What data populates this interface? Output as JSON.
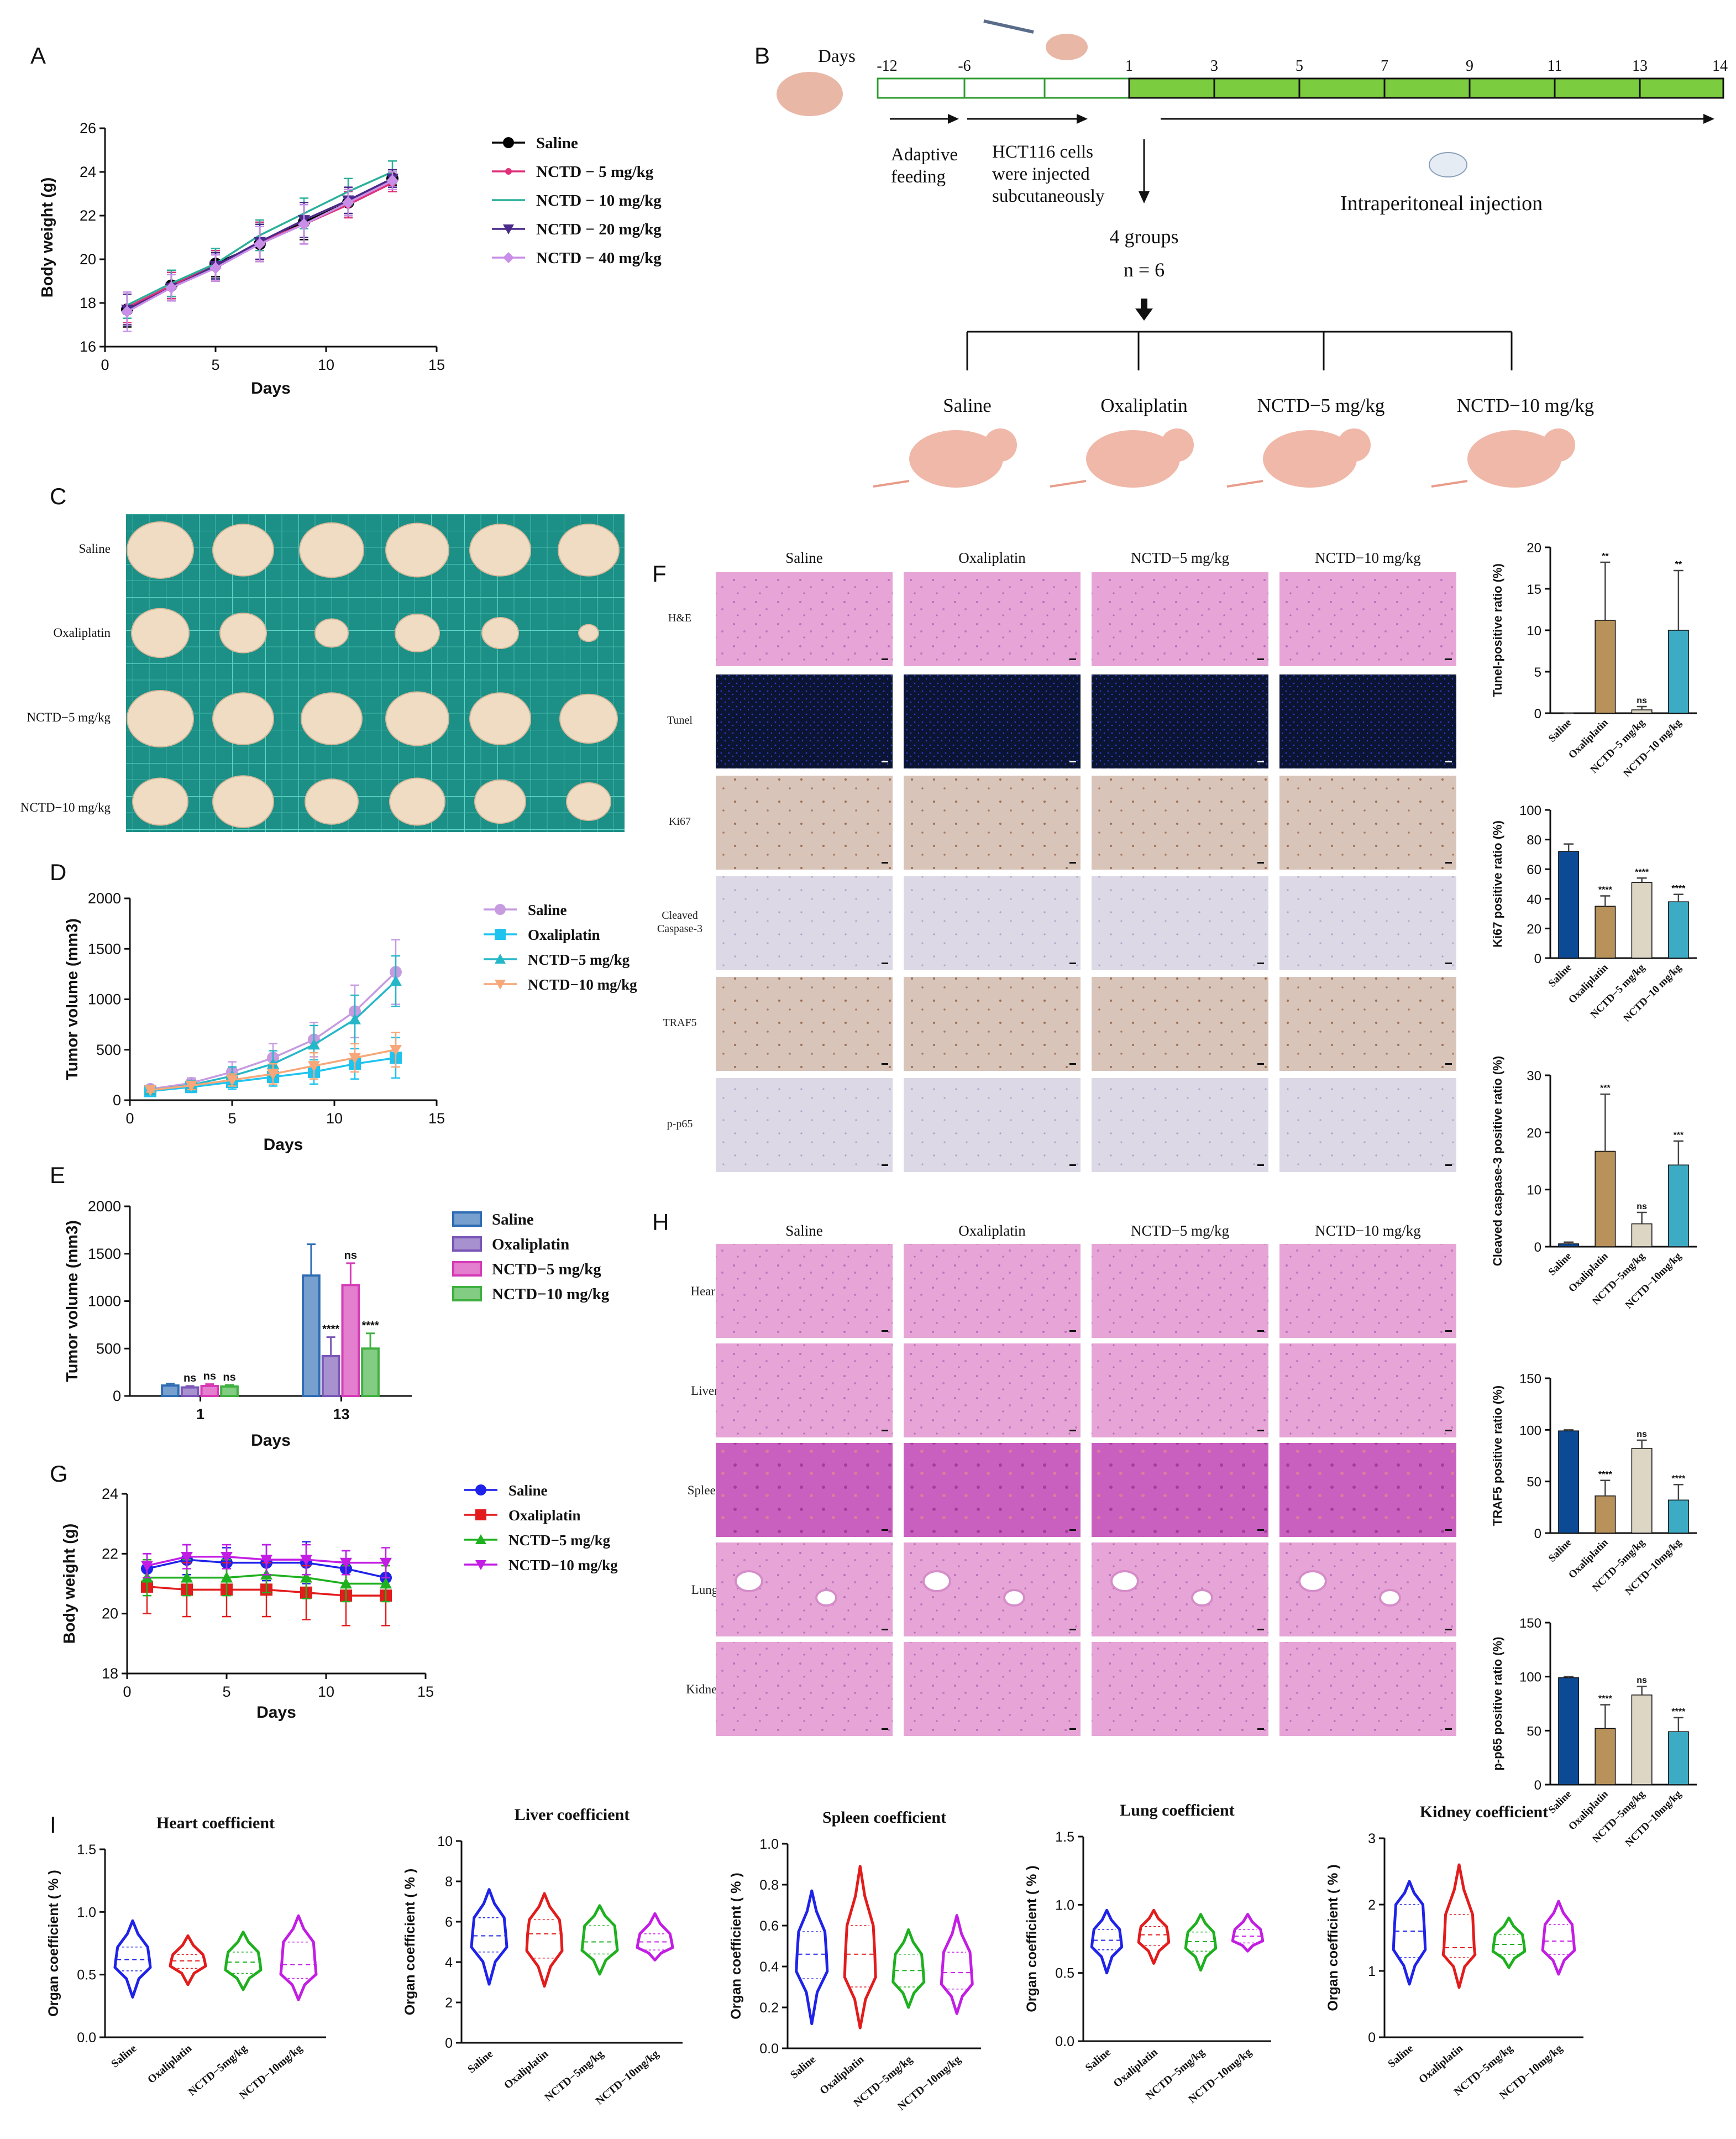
{
  "figure": {
    "panel_letters": [
      "A",
      "B",
      "C",
      "D",
      "E",
      "F",
      "G",
      "H",
      "I"
    ],
    "colors": {
      "saline_blue": "#2f6db3",
      "purple": "#7a56b6",
      "magenta": "#d63bb6",
      "green": "#40b040",
      "lilac": "#c69be0",
      "cyan": "#1fc3ee",
      "teal_tri": "#25b7c8",
      "orange": "#f7a779",
      "dark_blue": "#0d4a96",
      "tan": "#b8925a",
      "beige": "#ddd6c4",
      "teal": "#3eabc4",
      "red": "#e21c1c",
      "blue": "#1f22e8",
      "violet": "#c31de4",
      "he_pink": "#e8a6d6",
      "ihc": "#dad6e4",
      "tunel": "#0b1432",
      "grid_green": "#1c8f86"
    }
  },
  "schematic": {
    "days_label": "Days",
    "timeline_ticks": [
      "-12",
      "-6",
      "1",
      "3",
      "5",
      "7",
      "9",
      "11",
      "13",
      "14"
    ],
    "adaptive_label": [
      "Adaptive",
      "feeding"
    ],
    "hct_label": [
      "HCT116 cells",
      "were injected",
      "subcutaneously"
    ],
    "injection_label": "Intraperitoneal injection",
    "groups_label": "4 groups",
    "n_label": "n = 6",
    "groups": [
      "Saline",
      "Oxaliplatin",
      "NCTD−5 mg/kg",
      "NCTD−10 mg/kg"
    ]
  },
  "photo": {
    "row_labels": [
      "Saline",
      "Oxaliplatin",
      "NCTD−5 mg/kg",
      "NCTD−10 mg/kg"
    ]
  },
  "histology_F": {
    "col_labels": [
      "Saline",
      "Oxaliplatin",
      "NCTD−5 mg/kg",
      "NCTD−10 mg/kg"
    ],
    "row_labels": [
      "H&E",
      "Tunel",
      "Ki67",
      "Cleaved\nCaspase-3",
      "TRAF5",
      "p-p65"
    ]
  },
  "histology_H": {
    "col_labels": [
      "Saline",
      "Oxaliplatin",
      "NCTD−5 mg/kg",
      "NCTD−10 mg/kg"
    ],
    "row_labels": [
      "Heart",
      "Liver",
      "Spleen",
      "Lung",
      "Kidney"
    ]
  },
  "chart_data": [
    {
      "id": "A",
      "type": "line",
      "xlabel": "Days",
      "ylabel": "Body weight (g)",
      "xlim": [
        0,
        15
      ],
      "ylim": [
        16,
        26
      ],
      "xticks": [
        0,
        5,
        10,
        15
      ],
      "yticks": [
        16,
        18,
        20,
        22,
        24,
        26
      ],
      "x": [
        1,
        3,
        5,
        7,
        9,
        11,
        13
      ],
      "series": [
        {
          "name": "Saline",
          "color": "#000000",
          "marker": "circle",
          "values": [
            17.7,
            18.8,
            19.8,
            20.7,
            21.7,
            22.6,
            23.7
          ],
          "err": [
            0.8,
            0.6,
            0.6,
            0.8,
            0.8,
            0.6,
            0.3
          ]
        },
        {
          "name": "NCTD − 5 mg/kg",
          "color": "#e0307a",
          "marker": "dot",
          "values": [
            17.8,
            18.8,
            19.7,
            20.8,
            21.6,
            22.5,
            23.5
          ],
          "err": [
            0.7,
            0.6,
            0.7,
            0.9,
            0.9,
            0.6,
            0.4
          ]
        },
        {
          "name": "NCTD − 10 mg/kg",
          "color": "#2bb09a",
          "marker": "none",
          "values": [
            17.9,
            18.9,
            19.8,
            21.1,
            22.1,
            23.1,
            24.0
          ],
          "err": [
            0.6,
            0.6,
            0.7,
            0.7,
            0.7,
            0.6,
            0.5
          ]
        },
        {
          "name": "NCTD − 20 mg/kg",
          "color": "#4a2a8a",
          "marker": "tri_down",
          "values": [
            17.7,
            18.7,
            19.7,
            20.8,
            21.8,
            22.7,
            23.7
          ],
          "err": [
            0.7,
            0.6,
            0.6,
            0.8,
            0.8,
            0.6,
            0.4
          ]
        },
        {
          "name": "NCTD − 40 mg/kg",
          "color": "#c88ee8",
          "marker": "diamond",
          "values": [
            17.6,
            18.7,
            19.6,
            20.7,
            21.6,
            22.6,
            23.6
          ],
          "err": [
            0.9,
            0.6,
            0.6,
            0.8,
            0.9,
            0.6,
            0.4
          ]
        }
      ]
    },
    {
      "id": "D",
      "type": "line",
      "xlabel": "Days",
      "ylabel": "Tumor volume (mm3)",
      "xlim": [
        0,
        15
      ],
      "ylim": [
        0,
        2000
      ],
      "xticks": [
        0,
        5,
        10,
        15
      ],
      "yticks": [
        0,
        500,
        1000,
        1500,
        2000
      ],
      "x": [
        1,
        3,
        5,
        7,
        9,
        11,
        13
      ],
      "series": [
        {
          "name": "Saline",
          "color": "#c69be0",
          "marker": "circle",
          "values": [
            110,
            170,
            280,
            420,
            600,
            880,
            1270
          ],
          "err": [
            20,
            50,
            100,
            140,
            170,
            260,
            320
          ]
        },
        {
          "name": "Oxaliplatin",
          "color": "#1fc3ee",
          "marker": "square",
          "values": [
            90,
            130,
            180,
            230,
            280,
            360,
            420
          ],
          "err": [
            20,
            40,
            70,
            90,
            120,
            150,
            200
          ]
        },
        {
          "name": "NCTD−5 mg/kg",
          "color": "#25b7c8",
          "marker": "tri_up",
          "values": [
            100,
            150,
            240,
            360,
            550,
            800,
            1180
          ],
          "err": [
            20,
            40,
            90,
            130,
            190,
            240,
            250
          ]
        },
        {
          "name": "NCTD−10 mg/kg",
          "color": "#f7a779",
          "marker": "tri_down",
          "values": [
            100,
            145,
            200,
            260,
            340,
            420,
            500
          ],
          "err": [
            20,
            40,
            60,
            100,
            130,
            140,
            170
          ]
        }
      ]
    },
    {
      "id": "E",
      "type": "bar",
      "xlabel": "Days",
      "ylabel": "Tumor volume (mm3)",
      "categories": [
        "1",
        "13"
      ],
      "ylim": [
        0,
        2000
      ],
      "yticks": [
        0,
        500,
        1000,
        1500,
        2000
      ],
      "series": [
        {
          "name": "Saline",
          "color": "#2f6db3",
          "values": [
            110,
            1270
          ],
          "err": [
            20,
            330
          ],
          "sig": [
            "",
            ""
          ]
        },
        {
          "name": "Oxaliplatin",
          "color": "#7a56b6",
          "values": [
            90,
            420
          ],
          "err": [
            15,
            200
          ],
          "sig": [
            "ns",
            "****"
          ]
        },
        {
          "name": "NCTD−5 mg/kg",
          "color": "#d63bb6",
          "values": [
            105,
            1170
          ],
          "err": [
            20,
            230
          ],
          "sig": [
            "ns",
            "ns"
          ]
        },
        {
          "name": "NCTD−10 mg/kg",
          "color": "#40b040",
          "values": [
            100,
            500
          ],
          "err": [
            15,
            160
          ],
          "sig": [
            "ns",
            "****"
          ]
        }
      ]
    },
    {
      "id": "G",
      "type": "line",
      "xlabel": "Days",
      "ylabel": "Body weight (g)",
      "xlim": [
        0,
        15
      ],
      "ylim": [
        18,
        24
      ],
      "xticks": [
        0,
        5,
        10,
        15
      ],
      "yticks": [
        18,
        20,
        22,
        24
      ],
      "x": [
        1,
        3,
        5,
        7,
        9,
        11,
        13
      ],
      "series": [
        {
          "name": "Saline",
          "color": "#1f22e8",
          "marker": "circle",
          "values": [
            21.5,
            21.8,
            21.7,
            21.7,
            21.7,
            21.5,
            21.2
          ],
          "err": [
            0.5,
            0.5,
            0.5,
            0.6,
            0.7,
            0.6,
            0.6
          ]
        },
        {
          "name": "Oxaliplatin",
          "color": "#e21c1c",
          "marker": "square",
          "values": [
            20.9,
            20.8,
            20.8,
            20.8,
            20.7,
            20.6,
            20.6
          ],
          "err": [
            0.9,
            0.9,
            0.9,
            0.9,
            0.9,
            1.0,
            1.0
          ]
        },
        {
          "name": "NCTD−5 mg/kg",
          "color": "#1fb01f",
          "marker": "tri_up",
          "values": [
            21.2,
            21.2,
            21.2,
            21.3,
            21.2,
            21.0,
            21.0
          ],
          "err": [
            0.6,
            0.6,
            0.6,
            0.6,
            0.7,
            0.6,
            0.6
          ]
        },
        {
          "name": "NCTD−10 mg/kg",
          "color": "#c31de4",
          "marker": "tri_down",
          "values": [
            21.6,
            21.9,
            21.9,
            21.8,
            21.8,
            21.7,
            21.7
          ],
          "err": [
            0.4,
            0.4,
            0.4,
            0.5,
            0.5,
            0.4,
            0.5
          ]
        }
      ]
    },
    {
      "id": "F1",
      "type": "bar",
      "ylabel": "Tunel-positive ratio (%)",
      "categories": [
        "Saline",
        "Oxaliplatin",
        "NCTD−5 mg/kg",
        "NCTD−10 mg/kg"
      ],
      "ylim": [
        0,
        20
      ],
      "yticks": [
        0,
        5,
        10,
        15,
        20
      ],
      "values": [
        0,
        11.2,
        0.4,
        10.0
      ],
      "err": [
        0,
        7,
        0.4,
        7.2
      ],
      "sig": [
        "",
        "**",
        "ns",
        "**"
      ],
      "colors": [
        "#0d4a96",
        "#b8925a",
        "#ddd6c4",
        "#3eabc4"
      ]
    },
    {
      "id": "F2",
      "type": "bar",
      "ylabel": "Ki67 positive ratio (%)",
      "categories": [
        "Saline",
        "Oxaliplatin",
        "NCTD−5 mg/kg",
        "NCTD−10 mg/kg"
      ],
      "ylim": [
        0,
        100
      ],
      "yticks": [
        0,
        20,
        40,
        60,
        80,
        100
      ],
      "values": [
        72,
        35,
        51,
        38
      ],
      "err": [
        5,
        7,
        3,
        5
      ],
      "sig": [
        "",
        "****",
        "****",
        "****"
      ],
      "colors": [
        "#0d4a96",
        "#b8925a",
        "#ddd6c4",
        "#3eabc4"
      ]
    },
    {
      "id": "F3",
      "type": "bar",
      "ylabel": "Cleaved caspase-3 positive ratio (%)",
      "categories": [
        "Saline",
        "Oxaliplatin",
        "NCTD−5mg/kg",
        "NCTD−10mg/kg"
      ],
      "ylim": [
        0,
        30
      ],
      "yticks": [
        0,
        10,
        20,
        30
      ],
      "values": [
        0.5,
        16.7,
        4,
        14.3
      ],
      "err": [
        0.3,
        10,
        2,
        4.2
      ],
      "sig": [
        "",
        "***",
        "ns",
        "***"
      ],
      "colors": [
        "#0d4a96",
        "#b8925a",
        "#ddd6c4",
        "#3eabc4"
      ]
    },
    {
      "id": "F4",
      "type": "bar",
      "ylabel": "TRAF5 positive ratio (%)",
      "categories": [
        "Saline",
        "Oxaliplatin",
        "NCTD−5mg/kg",
        "NCTD−10mg/kg"
      ],
      "ylim": [
        0,
        150
      ],
      "yticks": [
        0,
        50,
        100,
        150
      ],
      "values": [
        99,
        36,
        82,
        32
      ],
      "err": [
        1,
        15,
        8,
        15
      ],
      "sig": [
        "",
        "****",
        "ns",
        "****"
      ],
      "colors": [
        "#0d4a96",
        "#b8925a",
        "#ddd6c4",
        "#3eabc4"
      ]
    },
    {
      "id": "F5",
      "type": "bar",
      "ylabel": "p-p65 positive ratio (%)",
      "categories": [
        "Saline",
        "Oxaliplatin",
        "NCTD−5mg/kg",
        "NCTD−10mg/kg"
      ],
      "ylim": [
        0,
        150
      ],
      "yticks": [
        0,
        50,
        100,
        150
      ],
      "values": [
        99,
        52,
        83,
        49
      ],
      "err": [
        1,
        22,
        8,
        13
      ],
      "sig": [
        "",
        "****",
        "ns",
        "****"
      ],
      "colors": [
        "#0d4a96",
        "#b8925a",
        "#ddd6c4",
        "#3eabc4"
      ]
    },
    {
      "id": "I1",
      "type": "violin",
      "title": "Heart coefficient",
      "ylabel": "Organ coefficient ( % )",
      "categories": [
        "Saline",
        "Oxaliplatin",
        "NCTD−5mg/kg",
        "NCTD−10mg/kg"
      ],
      "ylim": [
        0,
        1.5
      ],
      "yticks": [
        0,
        0.5,
        1.0,
        1.5
      ],
      "groups": [
        [
          0.32,
          0.53,
          0.62,
          0.72,
          0.93
        ],
        [
          0.42,
          0.55,
          0.61,
          0.66,
          0.81
        ],
        [
          0.38,
          0.51,
          0.6,
          0.68,
          0.84
        ],
        [
          0.3,
          0.47,
          0.58,
          0.76,
          0.97
        ]
      ],
      "colors": [
        "#1f22e8",
        "#e21c1c",
        "#1fb01f",
        "#c31de4"
      ]
    },
    {
      "id": "I2",
      "type": "violin",
      "title": "Liver coefficient",
      "ylabel": "Organ coefficient ( % )",
      "categories": [
        "Saline",
        "Oxaliplatin",
        "NCTD−5mg/kg",
        "NCTD−10mg/kg"
      ],
      "ylim": [
        0,
        10
      ],
      "yticks": [
        0,
        2,
        4,
        6,
        8,
        10
      ],
      "groups": [
        [
          2.9,
          4.5,
          5.3,
          6.2,
          7.6
        ],
        [
          2.8,
          4.2,
          5.4,
          6.1,
          7.4
        ],
        [
          3.4,
          4.4,
          5.0,
          5.8,
          6.8
        ],
        [
          4.1,
          4.6,
          5.0,
          5.4,
          6.4
        ]
      ],
      "colors": [
        "#1f22e8",
        "#e21c1c",
        "#1fb01f",
        "#c31de4"
      ]
    },
    {
      "id": "I3",
      "type": "violin",
      "title": "Spleen coefficient",
      "ylabel": "Organ coefficient ( % )",
      "categories": [
        "Saline",
        "Oxaliplatin",
        "NCTD−5mg/kg",
        "NCTD−10mg/kg"
      ],
      "ylim": [
        0,
        1.0
      ],
      "yticks": [
        0,
        0.2,
        0.4,
        0.6,
        0.8,
        1.0
      ],
      "groups": [
        [
          0.12,
          0.34,
          0.46,
          0.57,
          0.77
        ],
        [
          0.1,
          0.3,
          0.46,
          0.6,
          0.89
        ],
        [
          0.2,
          0.3,
          0.38,
          0.46,
          0.58
        ],
        [
          0.17,
          0.29,
          0.37,
          0.47,
          0.65
        ]
      ],
      "colors": [
        "#1f22e8",
        "#e21c1c",
        "#1fb01f",
        "#c31de4"
      ]
    },
    {
      "id": "I4",
      "type": "violin",
      "title": "Lung coefficient",
      "ylabel": "Organ coefficient ( % )",
      "categories": [
        "Saline",
        "Oxaliplatin",
        "NCTD−5mg/kg",
        "NCTD−10mg/kg"
      ],
      "ylim": [
        0,
        1.5
      ],
      "yticks": [
        0.0,
        0.5,
        1.0,
        1.5
      ],
      "groups": [
        [
          0.5,
          0.67,
          0.74,
          0.82,
          0.96
        ],
        [
          0.57,
          0.7,
          0.78,
          0.84,
          0.96
        ],
        [
          0.52,
          0.66,
          0.73,
          0.8,
          0.93
        ],
        [
          0.66,
          0.72,
          0.77,
          0.82,
          0.93
        ]
      ],
      "colors": [
        "#1f22e8",
        "#e21c1c",
        "#1fb01f",
        "#c31de4"
      ]
    },
    {
      "id": "I5",
      "type": "violin",
      "title": "Kidney coefficient",
      "ylabel": "Organ coefficient ( % )",
      "categories": [
        "Saline",
        "Oxaliplatin",
        "NCTD−5mg/kg",
        "NCTD−10mg/kg"
      ],
      "ylim": [
        0,
        3
      ],
      "yticks": [
        0,
        1,
        2,
        3
      ],
      "groups": [
        [
          0.8,
          1.2,
          1.6,
          2.0,
          2.35
        ],
        [
          0.75,
          1.2,
          1.35,
          1.85,
          2.6
        ],
        [
          1.05,
          1.25,
          1.4,
          1.55,
          1.8
        ],
        [
          0.95,
          1.25,
          1.45,
          1.7,
          2.05
        ]
      ],
      "colors": [
        "#1f22e8",
        "#e21c1c",
        "#1fb01f",
        "#c31de4"
      ]
    }
  ]
}
